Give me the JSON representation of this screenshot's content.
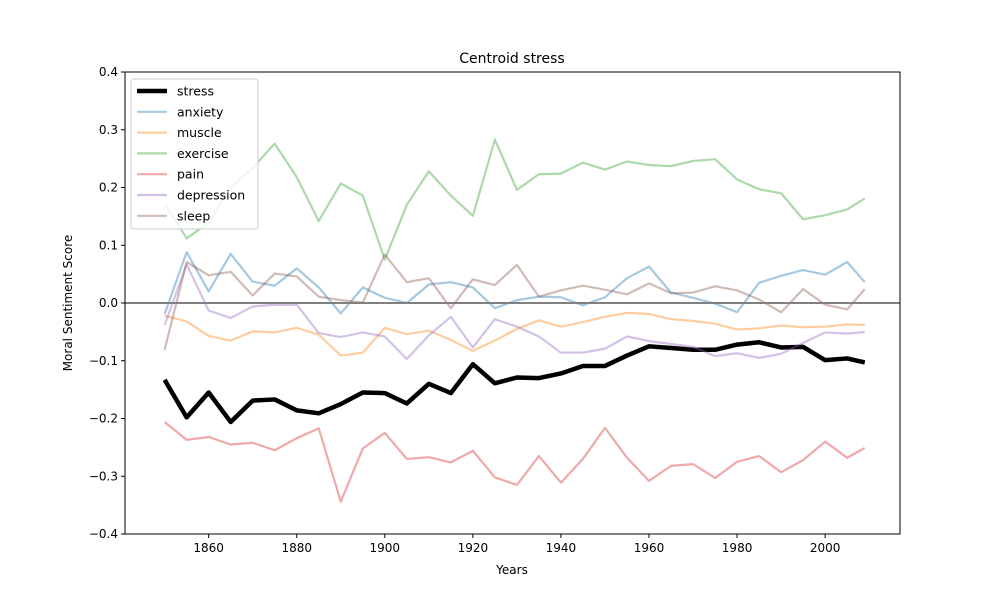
{
  "chart_data": {
    "type": "line",
    "title": "Centroid stress",
    "xlabel": "Years",
    "ylabel": "Moral Sentiment Score",
    "xlim": [
      1841,
      2017
    ],
    "ylim": [
      -0.4,
      0.4
    ],
    "xticks": [
      1860,
      1880,
      1900,
      1920,
      1940,
      1960,
      1980,
      2000
    ],
    "yticks": [
      -0.4,
      -0.3,
      -0.2,
      -0.1,
      0.0,
      0.1,
      0.2,
      0.3,
      0.4
    ],
    "ytick_labels": [
      "−0.4",
      "−0.3",
      "−0.2",
      "−0.1",
      "0.0",
      "0.1",
      "0.2",
      "0.3",
      "0.4"
    ],
    "legend_position": "top-left",
    "reference_line": {
      "y": 0.0,
      "color": "#808080"
    },
    "x": [
      1850,
      1855,
      1860,
      1865,
      1870,
      1875,
      1880,
      1885,
      1890,
      1895,
      1900,
      1905,
      1910,
      1915,
      1920,
      1925,
      1930,
      1935,
      1940,
      1945,
      1950,
      1955,
      1960,
      1965,
      1970,
      1975,
      1980,
      1985,
      1990,
      1995,
      2000,
      2005,
      2009
    ],
    "series": [
      {
        "name": "stress",
        "color": "#000000",
        "width": 4.5,
        "opacity": 1.0,
        "values": [
          -0.133,
          -0.198,
          -0.155,
          -0.206,
          -0.169,
          -0.167,
          -0.186,
          -0.191,
          -0.175,
          -0.155,
          -0.156,
          -0.174,
          -0.14,
          -0.156,
          -0.106,
          -0.139,
          -0.129,
          -0.13,
          -0.122,
          -0.109,
          -0.109,
          -0.091,
          -0.075,
          -0.078,
          -0.081,
          -0.081,
          -0.072,
          -0.068,
          -0.077,
          -0.076,
          -0.099,
          -0.096,
          -0.103
        ]
      },
      {
        "name": "anxiety",
        "color": "#1f77b4",
        "width": 2.2,
        "opacity": 0.4,
        "values": [
          -0.019,
          0.088,
          0.02,
          0.085,
          0.037,
          0.03,
          0.06,
          0.027,
          -0.018,
          0.027,
          0.009,
          0.0,
          0.032,
          0.036,
          0.027,
          -0.009,
          0.005,
          0.011,
          0.01,
          -0.004,
          0.01,
          0.043,
          0.063,
          0.018,
          0.009,
          -0.001,
          -0.016,
          0.035,
          0.047,
          0.057,
          0.049,
          0.071,
          0.036
        ]
      },
      {
        "name": "muscle",
        "color": "#ff7f0e",
        "width": 2.2,
        "opacity": 0.4,
        "values": [
          -0.022,
          -0.032,
          -0.057,
          -0.065,
          -0.049,
          -0.051,
          -0.043,
          -0.055,
          -0.091,
          -0.086,
          -0.043,
          -0.054,
          -0.048,
          -0.064,
          -0.083,
          -0.065,
          -0.045,
          -0.03,
          -0.041,
          -0.033,
          -0.024,
          -0.017,
          -0.019,
          -0.028,
          -0.031,
          -0.036,
          -0.046,
          -0.044,
          -0.039,
          -0.042,
          -0.041,
          -0.037,
          -0.038
        ]
      },
      {
        "name": "exercise",
        "color": "#2ca02c",
        "width": 2.2,
        "opacity": 0.4,
        "values": [
          0.172,
          0.112,
          0.139,
          0.2,
          0.234,
          0.276,
          0.218,
          0.142,
          0.207,
          0.186,
          0.075,
          0.17,
          0.228,
          0.186,
          0.151,
          0.283,
          0.196,
          0.223,
          0.224,
          0.243,
          0.231,
          0.245,
          0.239,
          0.237,
          0.246,
          0.249,
          0.214,
          0.197,
          0.19,
          0.145,
          0.152,
          0.162,
          0.181
        ]
      },
      {
        "name": "pain",
        "color": "#d62728",
        "width": 2.2,
        "opacity": 0.4,
        "values": [
          -0.206,
          -0.237,
          -0.232,
          -0.245,
          -0.242,
          -0.255,
          -0.234,
          -0.217,
          -0.344,
          -0.252,
          -0.225,
          -0.27,
          -0.267,
          -0.276,
          -0.256,
          -0.302,
          -0.315,
          -0.265,
          -0.311,
          -0.27,
          -0.216,
          -0.268,
          -0.308,
          -0.282,
          -0.279,
          -0.303,
          -0.275,
          -0.265,
          -0.293,
          -0.272,
          -0.24,
          -0.268,
          -0.251
        ]
      },
      {
        "name": "depression",
        "color": "#9467bd",
        "width": 2.2,
        "opacity": 0.4,
        "values": [
          -0.038,
          0.067,
          -0.013,
          -0.026,
          -0.006,
          -0.003,
          -0.003,
          -0.052,
          -0.059,
          -0.051,
          -0.058,
          -0.097,
          -0.056,
          -0.024,
          -0.077,
          -0.028,
          -0.041,
          -0.058,
          -0.086,
          -0.086,
          -0.079,
          -0.058,
          -0.066,
          -0.071,
          -0.076,
          -0.092,
          -0.087,
          -0.095,
          -0.088,
          -0.069,
          -0.051,
          -0.053,
          -0.05
        ]
      },
      {
        "name": "sleep",
        "color": "#8c564b",
        "width": 2.2,
        "opacity": 0.4,
        "values": [
          -0.081,
          0.071,
          0.048,
          0.054,
          0.013,
          0.051,
          0.046,
          0.011,
          0.005,
          0.001,
          0.084,
          0.036,
          0.043,
          -0.009,
          0.041,
          0.031,
          0.066,
          0.011,
          0.022,
          0.03,
          0.023,
          0.015,
          0.034,
          0.017,
          0.018,
          0.029,
          0.022,
          0.006,
          -0.016,
          0.024,
          -0.003,
          -0.011,
          0.024
        ]
      }
    ]
  }
}
